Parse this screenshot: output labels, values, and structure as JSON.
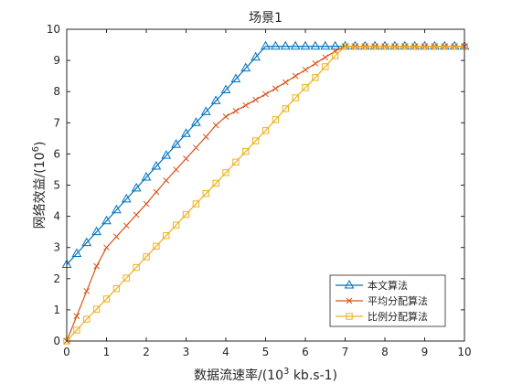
{
  "chart_data": {
    "type": "line",
    "title": "场景1",
    "xlabel_main": "数据流速率/(10",
    "xlabel_sup": "3",
    "xlabel_tail": " kb.s-1)",
    "ylabel_main": "网络效益/(10",
    "ylabel_sup": "6",
    "ylabel_tail": ")",
    "xlim": [
      0,
      10
    ],
    "ylim": [
      0,
      10
    ],
    "xticks": [
      0,
      1,
      2,
      3,
      4,
      5,
      6,
      7,
      8,
      9,
      10
    ],
    "yticks": [
      0,
      1,
      2,
      3,
      4,
      5,
      6,
      7,
      8,
      9,
      10
    ],
    "grid": false,
    "legend_position": "bottom-right",
    "series": [
      {
        "name": "本文算法",
        "color": "#0072BD",
        "marker": "triangle",
        "x": [
          0,
          0.25,
          0.5,
          0.75,
          1.0,
          1.25,
          1.5,
          1.75,
          2.0,
          2.25,
          2.5,
          2.75,
          3.0,
          3.25,
          3.5,
          3.75,
          4.0,
          4.25,
          4.5,
          4.75,
          5.0,
          5.25,
          5.5,
          5.75,
          6.0,
          6.25,
          6.5,
          6.75,
          7.0,
          7.25,
          7.5,
          7.75,
          8.0,
          8.25,
          8.5,
          8.75,
          9.0,
          9.25,
          9.5,
          9.75,
          10.0
        ],
        "y": [
          2.45,
          2.8,
          3.15,
          3.5,
          3.85,
          4.2,
          4.55,
          4.9,
          5.25,
          5.6,
          5.95,
          6.3,
          6.65,
          7.0,
          7.35,
          7.7,
          8.05,
          8.4,
          8.75,
          9.1,
          9.45,
          9.45,
          9.45,
          9.45,
          9.45,
          9.45,
          9.45,
          9.45,
          9.45,
          9.45,
          9.45,
          9.45,
          9.45,
          9.45,
          9.45,
          9.45,
          9.45,
          9.45,
          9.45,
          9.45,
          9.45
        ]
      },
      {
        "name": "平均分配算法",
        "color": "#D95319",
        "marker": "x",
        "x": [
          0,
          0.25,
          0.5,
          0.75,
          1.0,
          1.25,
          1.5,
          1.75,
          2.0,
          2.25,
          2.5,
          2.75,
          3.0,
          3.25,
          3.5,
          3.75,
          4.0,
          4.25,
          4.5,
          4.75,
          5.0,
          5.25,
          5.5,
          5.75,
          6.0,
          6.25,
          6.5,
          6.75,
          7.0,
          7.25,
          7.5,
          7.75,
          8.0,
          8.25,
          8.5,
          8.75,
          9.0,
          9.25,
          9.5,
          9.75,
          10.0
        ],
        "y": [
          0,
          0.8,
          1.6,
          2.4,
          3.0,
          3.35,
          3.7,
          4.05,
          4.4,
          4.78,
          5.15,
          5.5,
          5.85,
          6.2,
          6.55,
          6.92,
          7.2,
          7.38,
          7.56,
          7.74,
          7.92,
          8.1,
          8.3,
          8.5,
          8.7,
          8.9,
          9.1,
          9.3,
          9.45,
          9.45,
          9.45,
          9.45,
          9.45,
          9.45,
          9.45,
          9.45,
          9.45,
          9.45,
          9.45,
          9.45,
          9.45
        ]
      },
      {
        "name": "比例分配算法",
        "color": "#EDB120",
        "marker": "square",
        "x": [
          0,
          0.25,
          0.5,
          0.75,
          1.0,
          1.25,
          1.5,
          1.75,
          2.0,
          2.25,
          2.5,
          2.75,
          3.0,
          3.25,
          3.5,
          3.75,
          4.0,
          4.25,
          4.5,
          4.75,
          5.0,
          5.25,
          5.5,
          5.75,
          6.0,
          6.25,
          6.5,
          6.75,
          7.0,
          7.25,
          7.5,
          7.75,
          8.0,
          8.25,
          8.5,
          8.75,
          9.0,
          9.25,
          9.5,
          9.75,
          10.0
        ],
        "y": [
          0,
          0.35,
          0.7,
          1.02,
          1.35,
          1.68,
          2.02,
          2.36,
          2.7,
          3.04,
          3.38,
          3.72,
          4.06,
          4.4,
          4.73,
          5.06,
          5.4,
          5.74,
          6.08,
          6.42,
          6.75,
          7.1,
          7.45,
          7.8,
          8.13,
          8.45,
          8.8,
          9.15,
          9.45,
          9.45,
          9.45,
          9.45,
          9.45,
          9.45,
          9.45,
          9.45,
          9.45,
          9.45,
          9.45,
          9.45,
          9.45
        ]
      }
    ]
  }
}
